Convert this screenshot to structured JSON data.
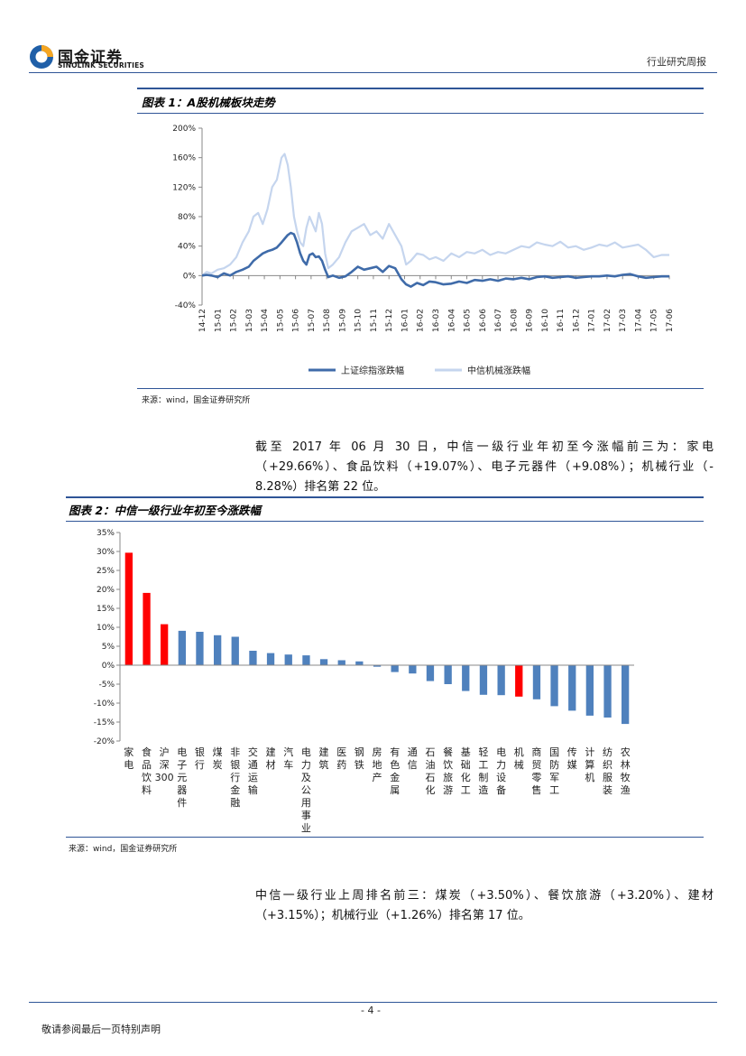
{
  "header": {
    "logo_cn": "国金证券",
    "logo_en": "SINOLINK SECURITIES",
    "report_type": "行业研究周报"
  },
  "figure1": {
    "title": "图表 1：A股机械板块走势",
    "source": "来源：wind，国金证券研究所"
  },
  "paragraph1": [
    "截至 2017 年 06 月 30 日，中信一级行业年初至今涨幅前三为：家电",
    "（+29.66%）、食品饮料（+19.07%）、电子元器件（+9.08%）；机械行业（-",
    "8.28%）排名第 22 位。"
  ],
  "figure2": {
    "title": "图表 2：中信一级行业年初至今涨跌幅",
    "source": "来源：wind，国金证券研究所"
  },
  "paragraph2": [
    "中信一级行业上周排名前三：煤炭（+3.50%）、餐饮旅游（+3.20%）、建材",
    "（+3.15%）；机械行业（+1.26%）排名第 17 位。"
  ],
  "footer": {
    "page": "- 4 -",
    "note": "敬请参阅最后一页特别声明"
  },
  "colors": {
    "brand_blue": "#2f5597",
    "series_dark": "#3f6ba9",
    "series_light": "#c5d5ee",
    "bar_blue": "#4f81bd",
    "bar_red": "#ff0000"
  },
  "chart_data": [
    {
      "type": "line",
      "ylim": [
        -40,
        200
      ],
      "yticks": [
        -40,
        0,
        40,
        80,
        120,
        160,
        200
      ],
      "ytick_labels": [
        "-40%",
        "0%",
        "40%",
        "80%",
        "120%",
        "160%",
        "200%"
      ],
      "xtick_labels": [
        "14-12",
        "15-01",
        "15-02",
        "15-03",
        "15-04",
        "15-05",
        "15-06",
        "15-07",
        "15-08",
        "15-09",
        "15-10",
        "15-11",
        "15-12",
        "16-01",
        "16-02",
        "16-03",
        "16-04",
        "16-05",
        "16-06",
        "16-07",
        "16-08",
        "16-09",
        "16-10",
        "16-11",
        "16-12",
        "17-01",
        "17-02",
        "17-03",
        "17-04",
        "17-05",
        "17-06"
      ],
      "legend": "bottom",
      "series": [
        {
          "name": "上证综指涨跌幅",
          "x": [
            0,
            0.3,
            0.6,
            1,
            1.4,
            1.8,
            2.2,
            2.6,
            3,
            3.3,
            3.6,
            3.9,
            4.2,
            4.5,
            4.8,
            5.1,
            5.3,
            5.5,
            5.7,
            5.9,
            6.1,
            6.3,
            6.5,
            6.7,
            6.9,
            7.1,
            7.3,
            7.5,
            7.7,
            7.9,
            8.1,
            8.4,
            8.8,
            9.2,
            9.6,
            10,
            10.4,
            10.8,
            11.2,
            11.6,
            12,
            12.4,
            12.8,
            13.1,
            13.4,
            13.8,
            14.2,
            14.6,
            15,
            15.5,
            16,
            16.5,
            17,
            17.5,
            18,
            18.5,
            19,
            19.5,
            20,
            20.5,
            21,
            21.5,
            22,
            22.5,
            23,
            23.5,
            24,
            24.5,
            25,
            25.5,
            26,
            26.5,
            27,
            27.5,
            28,
            28.5,
            29,
            29.5,
            30
          ],
          "values": [
            0,
            1,
            0,
            -2,
            3,
            0,
            5,
            8,
            12,
            20,
            25,
            30,
            33,
            35,
            38,
            45,
            50,
            55,
            58,
            56,
            45,
            30,
            20,
            15,
            28,
            30,
            25,
            26,
            20,
            8,
            -2,
            0,
            -3,
            -1,
            5,
            12,
            8,
            10,
            12,
            5,
            13,
            10,
            -5,
            -12,
            -15,
            -10,
            -13,
            -8,
            -9,
            -12,
            -11,
            -8,
            -10,
            -6,
            -7,
            -5,
            -7,
            -4,
            -5,
            -3,
            -5,
            -2,
            -1,
            -3,
            -2,
            -1,
            -3,
            -2,
            -1,
            -1,
            0,
            -1,
            1,
            2,
            -1,
            -3,
            -2,
            -1,
            -1
          ]
        },
        {
          "name": "中信机械涨跌幅",
          "x": [
            0,
            0.3,
            0.6,
            1,
            1.4,
            1.8,
            2.2,
            2.6,
            3,
            3.3,
            3.6,
            3.9,
            4.2,
            4.5,
            4.8,
            5.1,
            5.3,
            5.5,
            5.7,
            5.9,
            6.1,
            6.3,
            6.5,
            6.7,
            6.9,
            7.1,
            7.3,
            7.5,
            7.7,
            7.9,
            8.1,
            8.4,
            8.8,
            9.2,
            9.6,
            10,
            10.4,
            10.8,
            11.2,
            11.6,
            12,
            12.4,
            12.8,
            13.1,
            13.4,
            13.8,
            14.2,
            14.6,
            15,
            15.5,
            16,
            16.5,
            17,
            17.5,
            18,
            18.5,
            19,
            19.5,
            20,
            20.5,
            21,
            21.5,
            22,
            22.5,
            23,
            23.5,
            24,
            24.5,
            25,
            25.5,
            26,
            26.5,
            27,
            27.5,
            28,
            28.5,
            29,
            29.5,
            30
          ],
          "values": [
            0,
            5,
            3,
            8,
            10,
            15,
            25,
            45,
            60,
            80,
            85,
            70,
            90,
            120,
            130,
            160,
            165,
            150,
            120,
            80,
            60,
            45,
            40,
            65,
            80,
            70,
            60,
            85,
            70,
            30,
            10,
            15,
            25,
            45,
            60,
            65,
            70,
            55,
            60,
            50,
            70,
            55,
            40,
            15,
            20,
            30,
            28,
            22,
            25,
            20,
            30,
            25,
            32,
            30,
            35,
            28,
            32,
            30,
            35,
            40,
            38,
            45,
            42,
            40,
            46,
            38,
            40,
            35,
            38,
            42,
            40,
            45,
            38,
            40,
            42,
            35,
            25,
            28,
            28
          ]
        }
      ]
    },
    {
      "type": "bar",
      "ylim": [
        -20,
        35
      ],
      "yticks": [
        -20,
        -15,
        -10,
        -5,
        0,
        5,
        10,
        15,
        20,
        25,
        30,
        35
      ],
      "ytick_labels": [
        "-20%",
        "-15%",
        "-10%",
        "-5%",
        "0%",
        "5%",
        "10%",
        "15%",
        "20%",
        "25%",
        "30%",
        "35%"
      ],
      "categories": [
        "家电",
        "食品饮料",
        "沪深300",
        "电子元器件",
        "银行",
        "煤炭",
        "非银行金融",
        "交通运输",
        "建材",
        "汽车",
        "电力及公用事业",
        "建筑",
        "医药",
        "钢铁",
        "房地产",
        "有色金属",
        "通信",
        "石油石化",
        "餐饮旅游",
        "基础化工",
        "轻工制造",
        "电力设备",
        "机械",
        "商贸零售",
        "国防军工",
        "传媒",
        "计算机",
        "纺织服装",
        "农林牧渔"
      ],
      "values": [
        29.66,
        19.07,
        10.8,
        9.08,
        8.8,
        7.9,
        7.5,
        3.8,
        3.2,
        2.8,
        2.6,
        1.6,
        1.3,
        1.0,
        -0.4,
        -1.8,
        -2.2,
        -4.2,
        -5.0,
        -6.8,
        -7.8,
        -7.9,
        -8.28,
        -9.0,
        -10.8,
        -12.0,
        -13.3,
        -13.8,
        -15.5
      ],
      "highlight": [
        "家电",
        "食品饮料",
        "沪深300",
        "机械"
      ]
    }
  ]
}
